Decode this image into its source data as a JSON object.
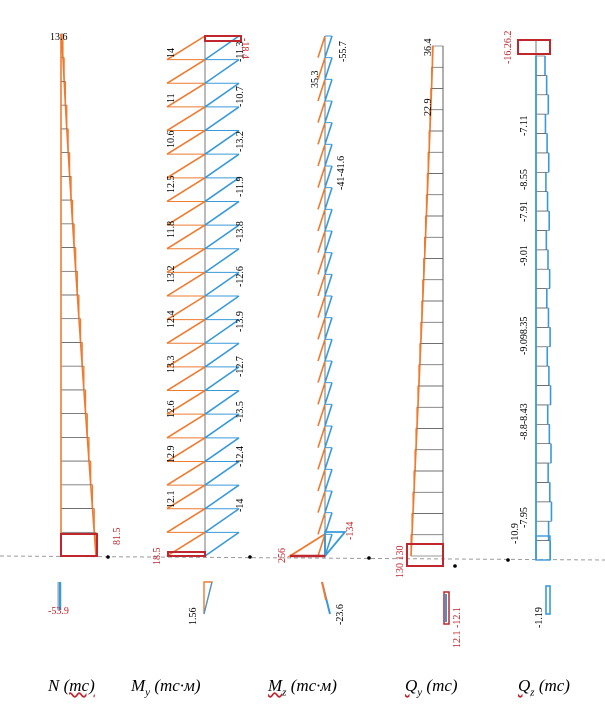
{
  "colors": {
    "orange": "#ee7b30",
    "blue": "#3a9ad9",
    "red": "#c0262d",
    "outline": "#555555",
    "baseline": "#9a9a9a"
  },
  "captions": {
    "n": {
      "sym": "N",
      "sub": "",
      "unit": "(тс)"
    },
    "my": {
      "sym": "M",
      "sub": "y",
      "unit": "(тс·м)"
    },
    "mz": {
      "sym": "M",
      "sub": "z",
      "unit": "(тс·м)"
    },
    "qy": {
      "sym": "Q",
      "sub": "y",
      "unit": "(тс)"
    },
    "qz": {
      "sym": "Q",
      "sub": "z",
      "unit": "(тс)"
    }
  },
  "diagrams": {
    "n": {
      "top_label": "13.6",
      "bottom_label": "81.5",
      "small_label": "-53.9"
    },
    "my": {
      "left_labels": [
        "14",
        "11",
        "10.6",
        "12.5",
        "11.8",
        "13.2",
        "12.4",
        "13.3",
        "12.6",
        "12.9",
        "12.1"
      ],
      "right_labels": [
        "-11.3",
        "-10.7",
        "-13.2",
        "-11.9",
        "-13.8",
        "-12.6",
        "-13.9",
        "-12.7",
        "-13.5",
        "-12.4",
        "-14"
      ],
      "top_red": "-18.4",
      "bottom_red": "18.5",
      "small_label": "1.56"
    },
    "mz": {
      "left_labels": [
        "35.3"
      ],
      "right_labels": [
        "-55.7",
        "-41-41.6"
      ],
      "bottom_red_left": "256",
      "bottom_red_right": "-134",
      "small_label": "-23.6"
    },
    "qy": {
      "top_label": "36.4",
      "mid_label": "22.9",
      "bottom_red": "130 130",
      "small_red": "12.1 -12.1"
    },
    "qz": {
      "top_red": "-16.26.2",
      "left_labels": [
        "-7.11",
        "-8.55",
        "-7.91",
        "-9.01",
        "-9.098.35",
        "-8.8-8.43",
        "-7.95",
        "-10.9"
      ],
      "small_label": "-1.19"
    }
  }
}
